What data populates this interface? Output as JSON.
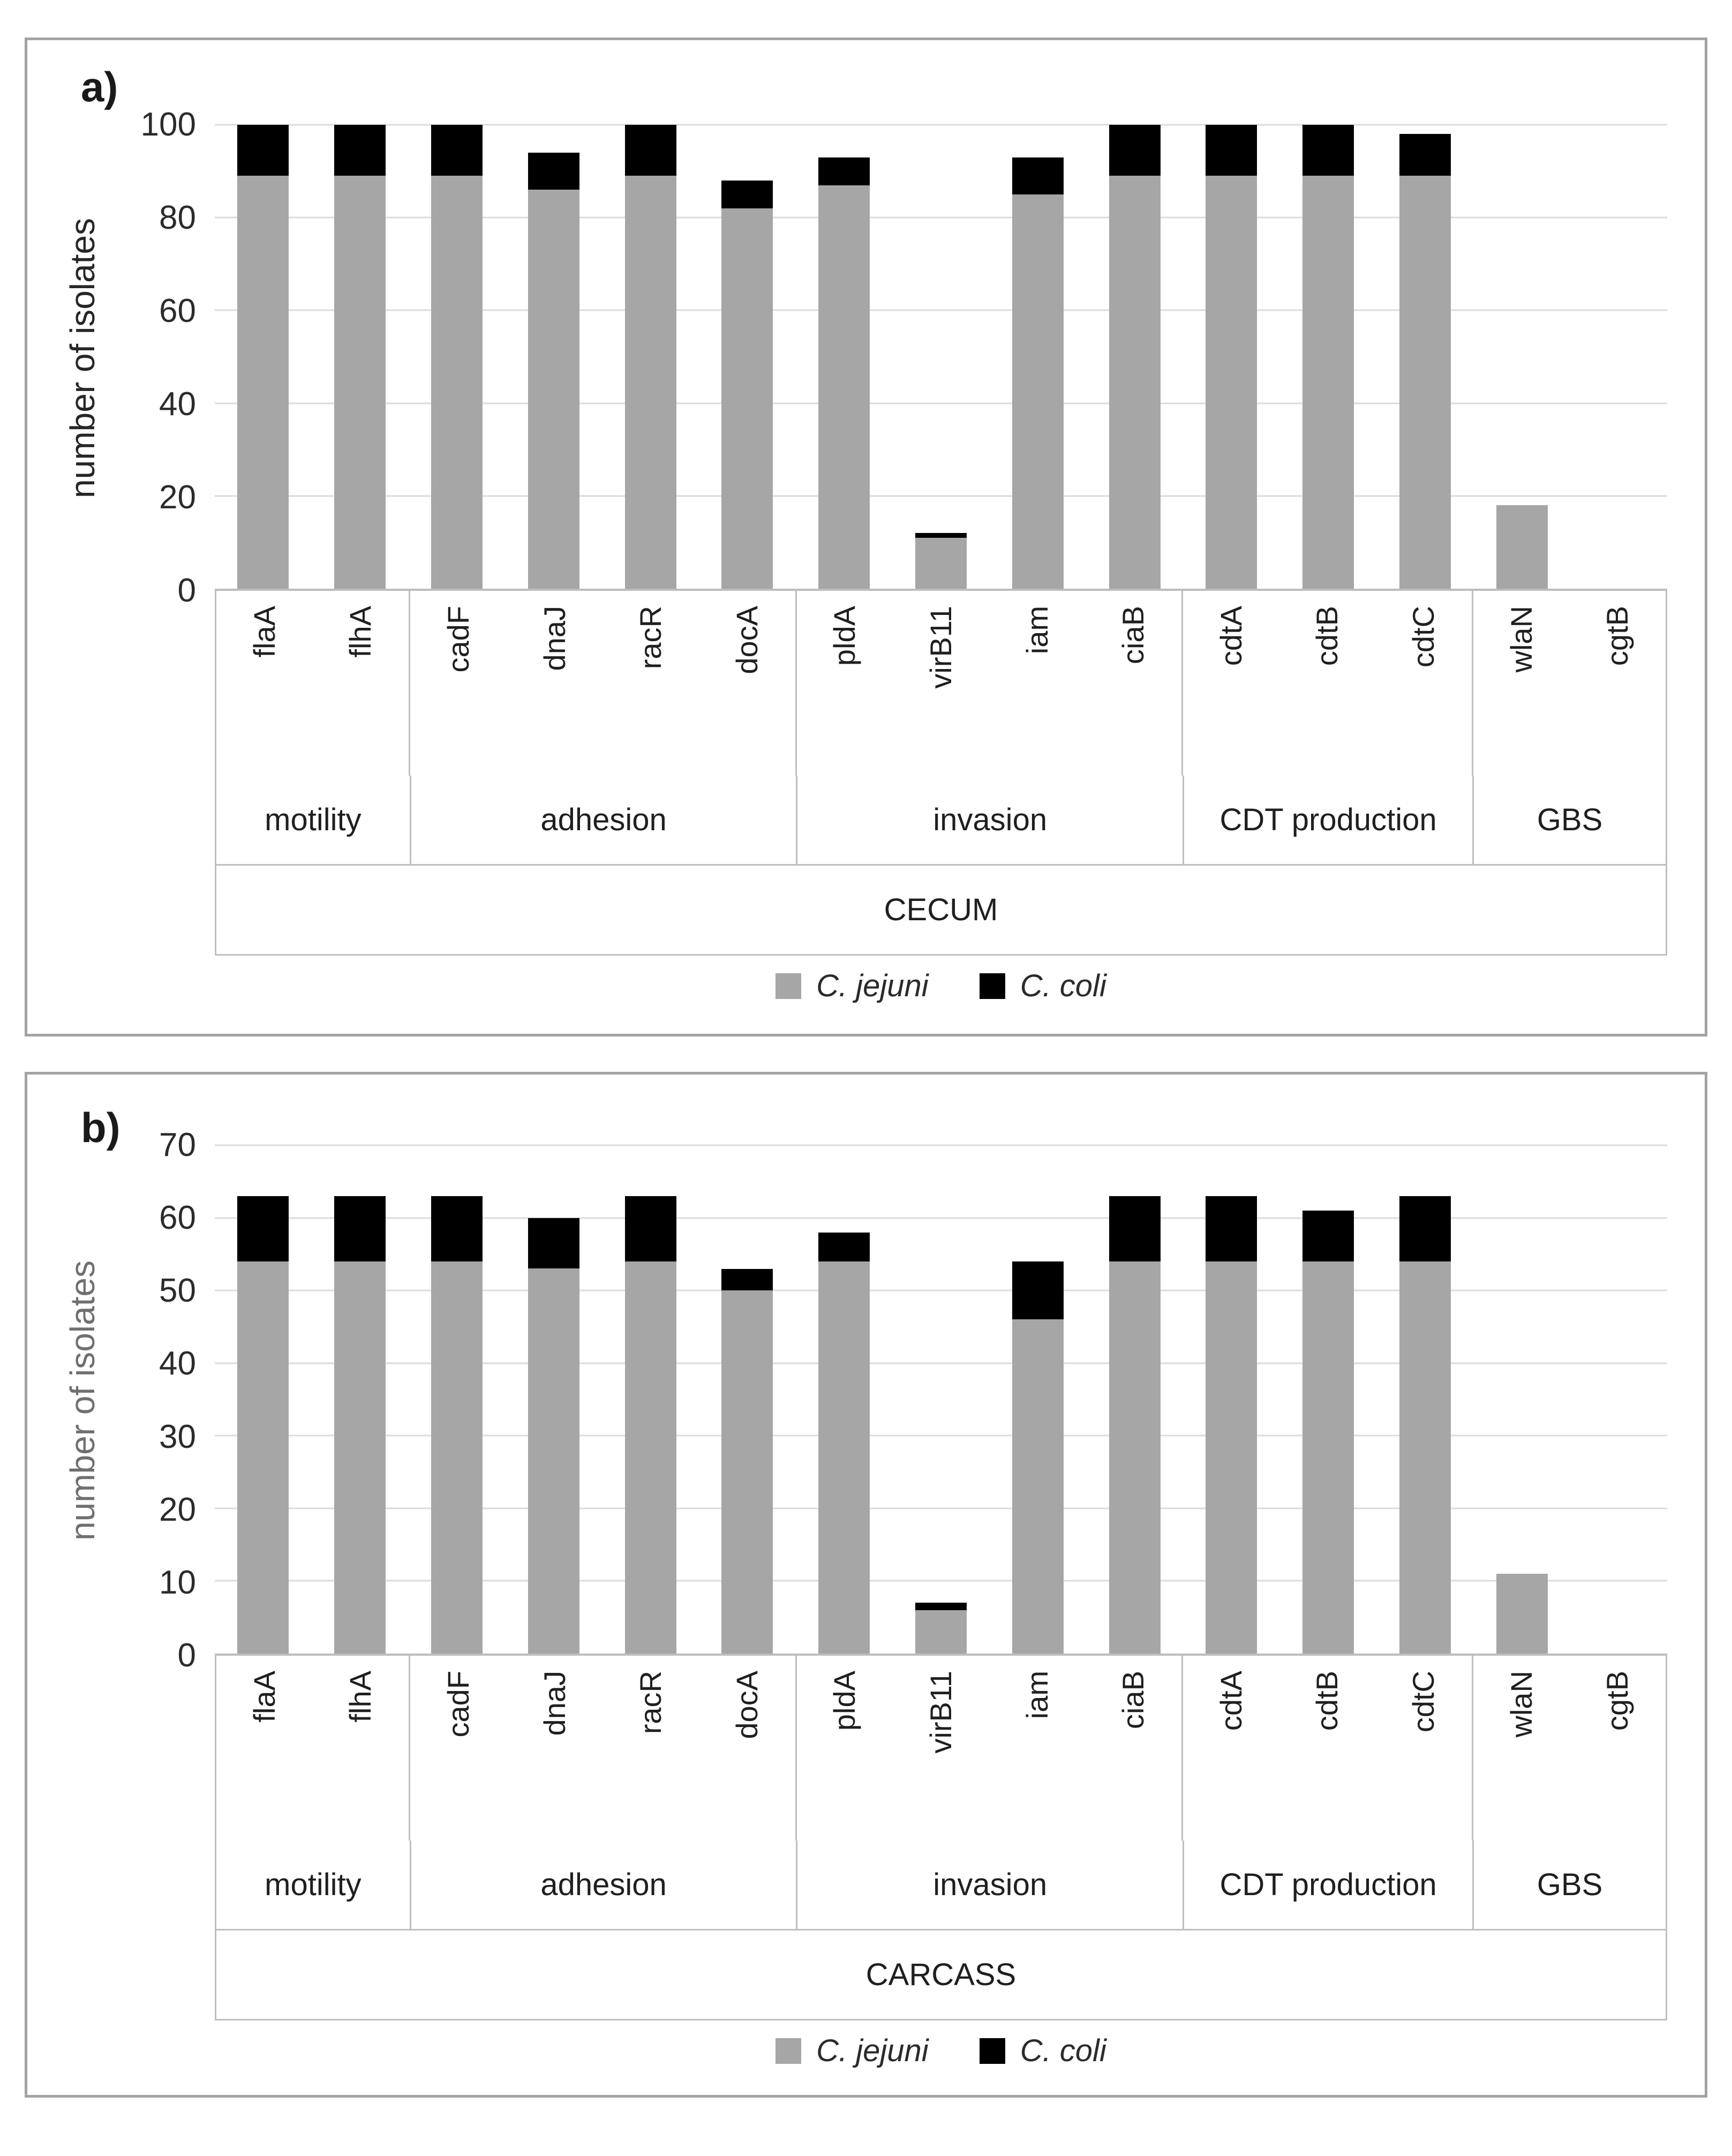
{
  "chart_data": [
    {
      "type": "bar",
      "stacked": true,
      "panel_label": "a)",
      "title": "CECUM",
      "ylabel": "number of isolates",
      "ylim": [
        0,
        100
      ],
      "yticks": [
        100,
        80,
        60,
        40,
        20,
        0
      ],
      "grid": true,
      "legend_position": "bottom",
      "categories": [
        "flaA",
        "flhA",
        "cadF",
        "dnaJ",
        "racR",
        "docA",
        "pldA",
        "virB11",
        "iam",
        "ciaB",
        "cdtA",
        "cdtB",
        "cdtC",
        "wlaN",
        "cgtB"
      ],
      "groups": [
        {
          "label": "motility",
          "span": 2
        },
        {
          "label": "adhesion",
          "span": 4
        },
        {
          "label": "invasion",
          "span": 4
        },
        {
          "label": "CDT production",
          "span": 3
        },
        {
          "label": "GBS",
          "span": 2
        }
      ],
      "series": [
        {
          "name": "C. jejuni",
          "color": "#a6a6a6",
          "values": [
            89,
            89,
            89,
            86,
            89,
            82,
            87,
            11,
            85,
            89,
            89,
            89,
            89,
            18,
            0
          ]
        },
        {
          "name": "C. coli",
          "color": "#000000",
          "values": [
            11,
            11,
            11,
            8,
            11,
            6,
            6,
            1,
            8,
            11,
            11,
            11,
            9,
            0,
            0
          ]
        }
      ]
    },
    {
      "type": "bar",
      "stacked": true,
      "panel_label": "b)",
      "title": "CARCASS",
      "ylabel": "number of isolates",
      "ylim": [
        0,
        70
      ],
      "yticks": [
        70,
        60,
        50,
        40,
        30,
        20,
        10,
        0
      ],
      "grid": true,
      "legend_position": "bottom",
      "categories": [
        "flaA",
        "flhA",
        "cadF",
        "dnaJ",
        "racR",
        "docA",
        "pldA",
        "virB11",
        "iam",
        "ciaB",
        "cdtA",
        "cdtB",
        "cdtC",
        "wlaN",
        "cgtB"
      ],
      "groups": [
        {
          "label": "motility",
          "span": 2
        },
        {
          "label": "adhesion",
          "span": 4
        },
        {
          "label": "invasion",
          "span": 4
        },
        {
          "label": "CDT production",
          "span": 3
        },
        {
          "label": "GBS",
          "span": 2
        }
      ],
      "series": [
        {
          "name": "C. jejuni",
          "color": "#a6a6a6",
          "values": [
            54,
            54,
            54,
            53,
            54,
            50,
            54,
            6,
            46,
            54,
            54,
            54,
            54,
            11,
            0
          ]
        },
        {
          "name": "C. coli",
          "color": "#000000",
          "values": [
            9,
            9,
            9,
            7,
            9,
            3,
            4,
            1,
            8,
            9,
            9,
            7,
            9,
            0,
            0
          ]
        }
      ]
    }
  ]
}
